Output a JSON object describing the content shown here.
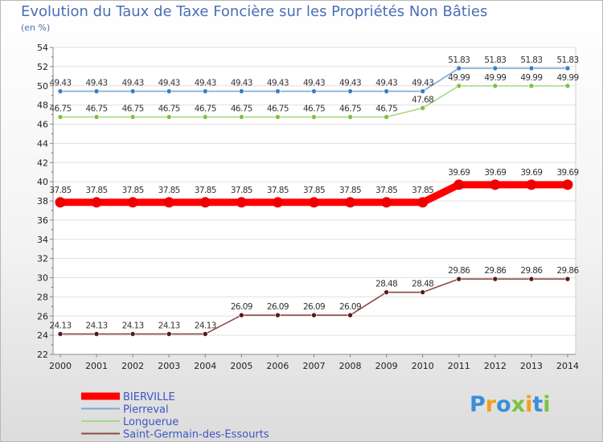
{
  "title": "Evolution du Taux de Taxe Foncière sur les Propriétés Non Bâties",
  "subtitle": "(en %)",
  "logo_text": "Proxiti",
  "logo_letters": [
    {
      "ch": "P",
      "color": "#3a8fd8"
    },
    {
      "ch": "r",
      "color": "#f0a020"
    },
    {
      "ch": "o",
      "color": "#3a8fd8"
    },
    {
      "ch": "x",
      "color": "#7cc242"
    },
    {
      "ch": "i",
      "color": "#f0a020"
    },
    {
      "ch": "t",
      "color": "#3a8fd8"
    },
    {
      "ch": "i",
      "color": "#7cc242"
    }
  ],
  "chart_data": {
    "type": "line",
    "title": "Evolution du Taux de Taxe Foncière sur les Propriétés Non Bâties",
    "ylabel": "(en %)",
    "xlabel": "",
    "ylim": [
      22,
      54
    ],
    "y_ticks": [
      22,
      24,
      26,
      28,
      30,
      32,
      34,
      36,
      38,
      40,
      42,
      44,
      46,
      48,
      50,
      52,
      54
    ],
    "x": [
      "2000",
      "2001",
      "2002",
      "2003",
      "2004",
      "2005",
      "2006",
      "2007",
      "2008",
      "2009",
      "2010",
      "2011",
      "2012",
      "2013",
      "2014"
    ],
    "grid": "horizontal",
    "legend_position": "bottom-left",
    "series": [
      {
        "name": "BIERVILLE",
        "color": "#ff0000",
        "marker_color": "#ee0000",
        "emphasis": "bold",
        "values": [
          37.85,
          37.85,
          37.85,
          37.85,
          37.85,
          37.85,
          37.85,
          37.85,
          37.85,
          37.85,
          37.85,
          39.69,
          39.69,
          39.69,
          39.69
        ],
        "labels": [
          "37.85",
          "37.85",
          "37.85",
          "37.85",
          "37.85",
          "37.85",
          "37.85",
          "37.85",
          "37.85",
          "37.85",
          "37.85",
          "39.69",
          "39.69",
          "39.69",
          "39.69"
        ]
      },
      {
        "name": "Pierreval",
        "color": "#78a8d8",
        "marker_color": "#3a7ec8",
        "emphasis": "normal",
        "values": [
          49.43,
          49.43,
          49.43,
          49.43,
          49.43,
          49.43,
          49.43,
          49.43,
          49.43,
          49.43,
          49.43,
          51.83,
          51.83,
          51.83,
          51.83
        ],
        "labels": [
          "49.43",
          "49.43",
          "49.43",
          "49.43",
          "49.43",
          "49.43",
          "49.43",
          "49.43",
          "49.43",
          "49.43",
          "49.43",
          "51.83",
          "51.83",
          "51.83",
          "51.83"
        ]
      },
      {
        "name": "Longuerue",
        "color": "#a8d888",
        "marker_color": "#7cc242",
        "emphasis": "normal",
        "values": [
          46.75,
          46.75,
          46.75,
          46.75,
          46.75,
          46.75,
          46.75,
          46.75,
          46.75,
          46.75,
          47.68,
          49.99,
          49.99,
          49.99,
          49.99
        ],
        "labels": [
          "46.75",
          "46.75",
          "46.75",
          "46.75",
          "46.75",
          "46.75",
          "46.75",
          "46.75",
          "46.75",
          "46.75",
          "47.68",
          "49.99",
          "49.99",
          "49.99",
          "49.99"
        ]
      },
      {
        "name": "Saint-Germain-des-Essourts",
        "color": "#8a4a4a",
        "marker_color": "#5a1818",
        "emphasis": "normal",
        "values": [
          24.13,
          24.13,
          24.13,
          24.13,
          24.13,
          26.09,
          26.09,
          26.09,
          26.09,
          28.48,
          28.48,
          29.86,
          29.86,
          29.86,
          29.86
        ],
        "labels": [
          "24.13",
          "24.13",
          "24.13",
          "24.13",
          "24.13",
          "26.09",
          "26.09",
          "26.09",
          "26.09",
          "28.48",
          "28.48",
          "29.86",
          "29.86",
          "29.86",
          "29.86"
        ]
      }
    ]
  }
}
